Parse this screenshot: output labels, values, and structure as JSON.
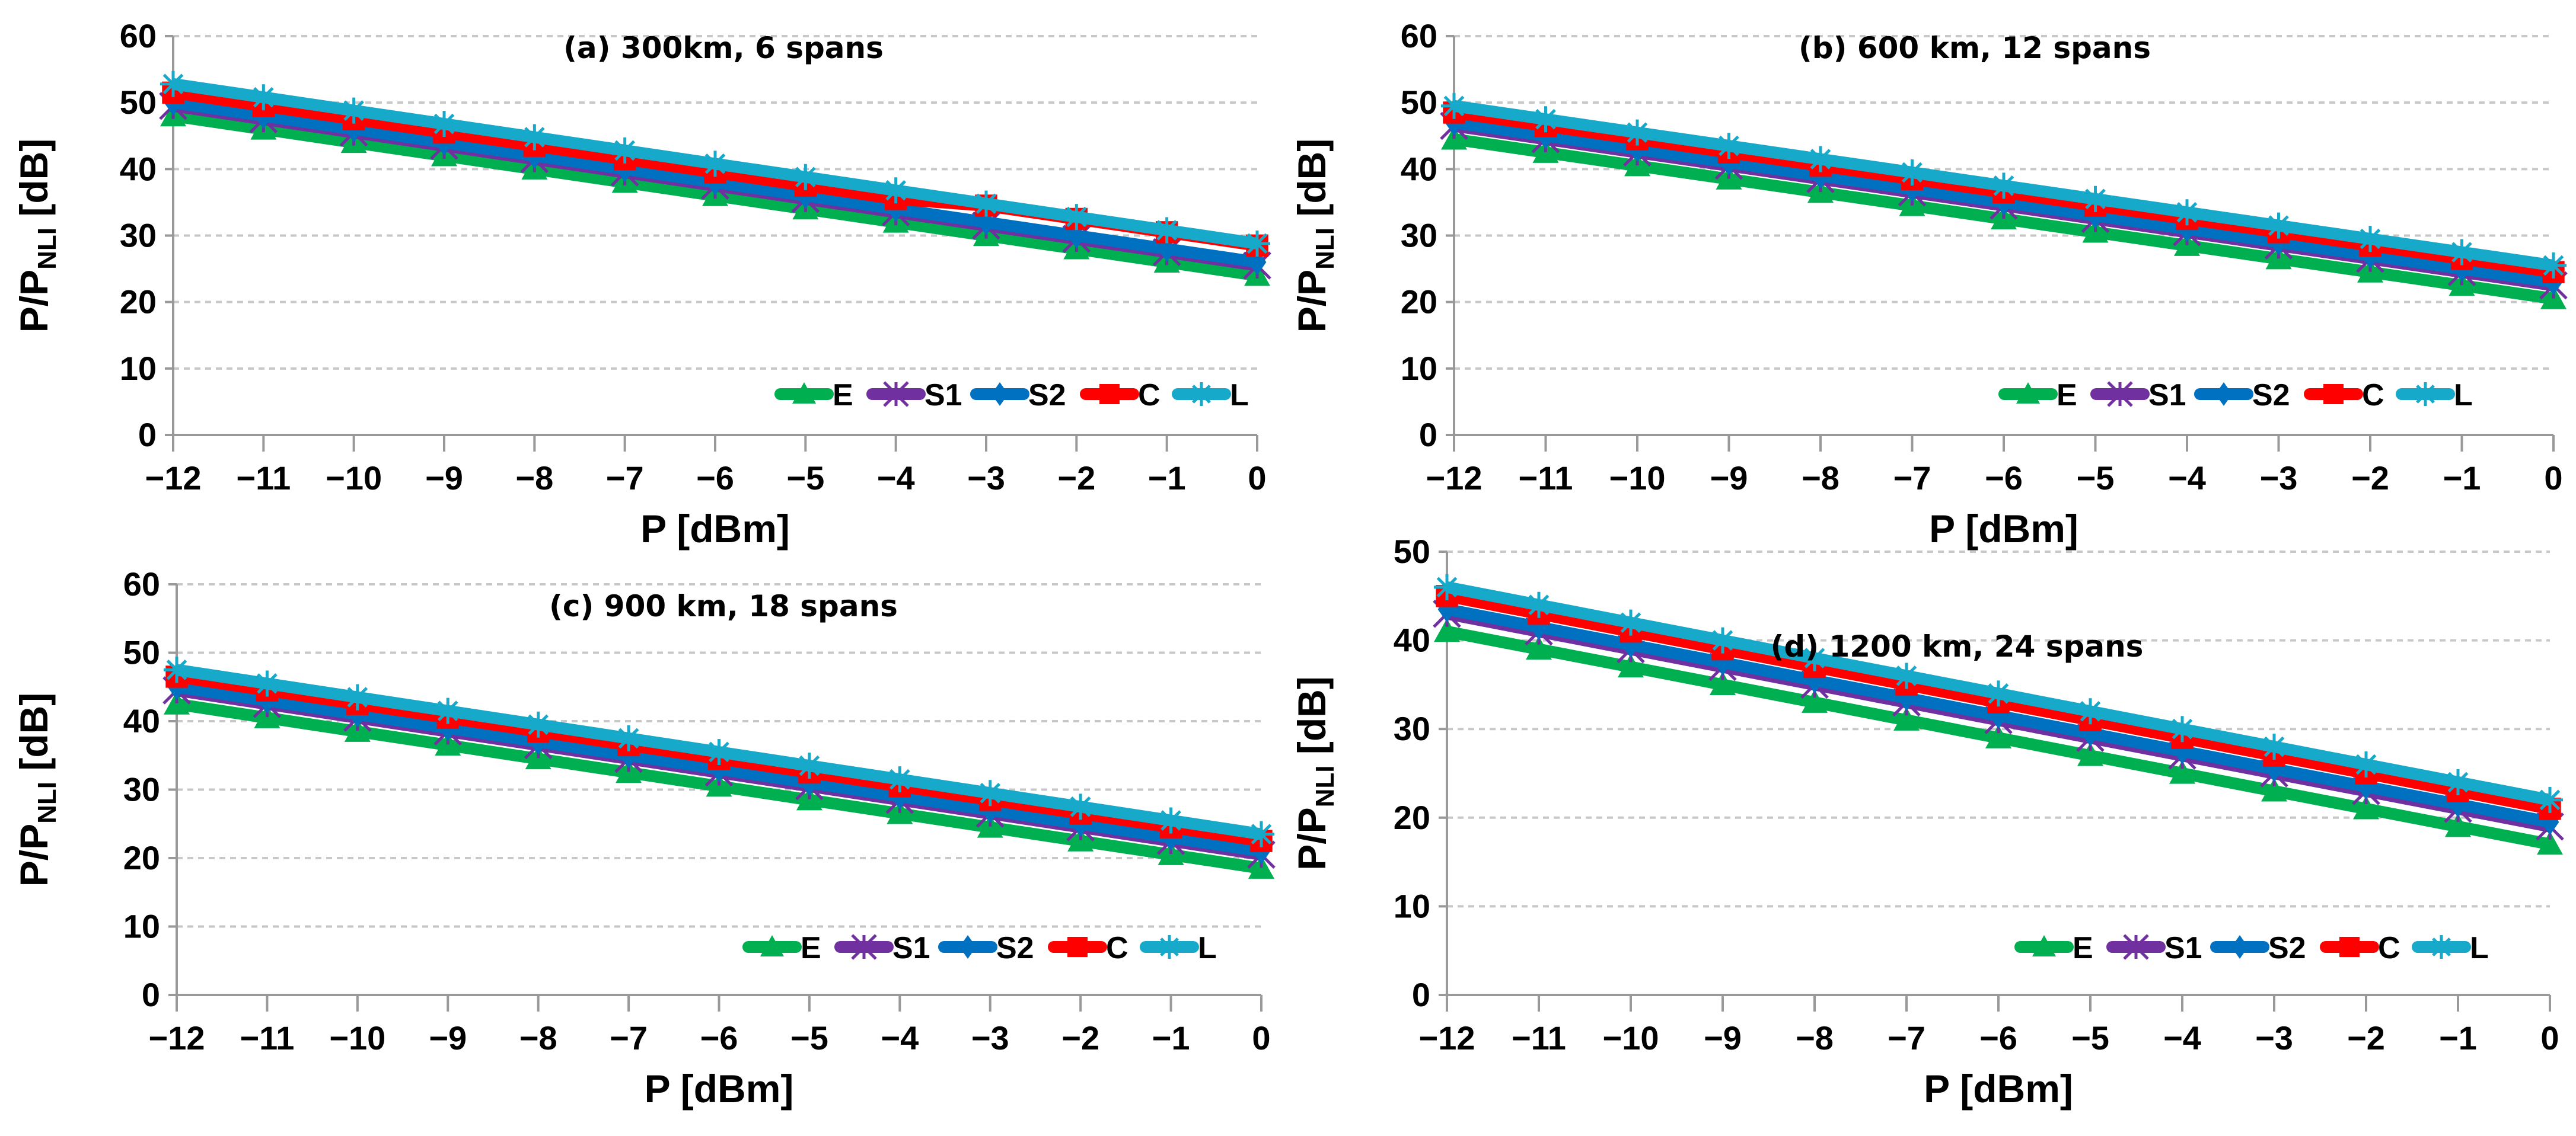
{
  "colors": {
    "E": "#00b050",
    "S1": "#7030a0",
    "S2": "#0070c0",
    "C": "#ff0000",
    "L": "#17a9c9",
    "grid": "#c8c8c8",
    "axis": "#999999"
  },
  "chart_data": [
    {
      "type": "line",
      "title": "(a) 300km, 6 spans",
      "xlabel": "P [dBm]",
      "ylabel_main": "P/P",
      "ylabel_sub": "NLI",
      "ylabel_unit": " [dB]",
      "x": [
        -12,
        -11,
        -10,
        -9,
        -8,
        -7,
        -6,
        -5,
        -4,
        -3,
        -2,
        -1,
        0
      ],
      "xticks": [
        "−12",
        "−11",
        "−10",
        "−9",
        "−8",
        "−7",
        "−6",
        "−5",
        "−4",
        "−3",
        "−2",
        "−1",
        "0"
      ],
      "ylim": [
        0,
        60
      ],
      "yticks": [
        "0",
        "10",
        "20",
        "30",
        "40",
        "50",
        "60"
      ],
      "grid": true,
      "legend": "bottom-right",
      "series": [
        {
          "name": "E",
          "marker": "triangle",
          "values": [
            48,
            46,
            44,
            42,
            40,
            38,
            36,
            34,
            32,
            30,
            28,
            26,
            24
          ]
        },
        {
          "name": "S1",
          "marker": "star-x",
          "values": [
            49.5,
            47.5,
            45.5,
            43.5,
            41.5,
            39.5,
            37.5,
            35.5,
            33.5,
            31.5,
            29.5,
            27.5,
            25.5
          ]
        },
        {
          "name": "S2",
          "marker": "diamond",
          "values": [
            50,
            48,
            46,
            44,
            42,
            40,
            38,
            36,
            34,
            32,
            30,
            28,
            26
          ]
        },
        {
          "name": "C",
          "marker": "square",
          "values": [
            51.5,
            49.5,
            47.5,
            45.5,
            43.5,
            41.5,
            39.5,
            37.5,
            35.5,
            34.5,
            32.5,
            30.5,
            28.5
          ]
        },
        {
          "name": "L",
          "marker": "asterisk",
          "values": [
            52.8,
            50.8,
            48.8,
            46.8,
            44.8,
            42.8,
            40.8,
            38.8,
            36.8,
            34.8,
            32.8,
            30.8,
            28.8
          ]
        }
      ]
    },
    {
      "type": "line",
      "title": "(b) 600 km, 12 spans",
      "xlabel": "P [dBm]",
      "ylabel_main": "P/P",
      "ylabel_sub": "NLI",
      "ylabel_unit": " [dB]",
      "x": [
        -12,
        -11,
        -10,
        -9,
        -8,
        -7,
        -6,
        -5,
        -4,
        -3,
        -2,
        -1,
        0
      ],
      "xticks": [
        "−12",
        "−11",
        "−10",
        "−9",
        "−8",
        "−7",
        "−6",
        "−5",
        "−4",
        "−3",
        "−2",
        "−1",
        "0"
      ],
      "ylim": [
        0,
        60
      ],
      "yticks": [
        "0",
        "10",
        "20",
        "30",
        "40",
        "50",
        "60"
      ],
      "grid": true,
      "legend": "bottom-right",
      "series": [
        {
          "name": "E",
          "marker": "triangle",
          "values": [
            44.5,
            42.5,
            40.5,
            38.5,
            36.5,
            34.5,
            32.5,
            30.5,
            28.5,
            26.5,
            24.5,
            22.5,
            20.5
          ]
        },
        {
          "name": "S1",
          "marker": "star-x",
          "values": [
            46.5,
            44.5,
            42.5,
            40.5,
            38.5,
            36.5,
            34.5,
            32.5,
            30.5,
            28.5,
            26.5,
            24.5,
            22.5
          ]
        },
        {
          "name": "S2",
          "marker": "diamond",
          "values": [
            47,
            45,
            43,
            41,
            39,
            37,
            35,
            33,
            31,
            29,
            27,
            25,
            23
          ]
        },
        {
          "name": "C",
          "marker": "square",
          "values": [
            48.5,
            46.5,
            44.5,
            42.5,
            40.5,
            38.5,
            36.5,
            34.5,
            32.5,
            30.5,
            28.5,
            26.5,
            24.5
          ]
        },
        {
          "name": "L",
          "marker": "asterisk",
          "values": [
            49.5,
            47.5,
            45.5,
            43.5,
            41.5,
            39.5,
            37.5,
            35.5,
            33.5,
            31.5,
            29.5,
            27.5,
            25.5
          ]
        }
      ]
    },
    {
      "type": "line",
      "title": "(c) 900 km, 18 spans",
      "xlabel": "P [dBm]",
      "ylabel_main": "P/P",
      "ylabel_sub": "NLI",
      "ylabel_unit": " [dB]",
      "x": [
        -12,
        -11,
        -10,
        -9,
        -8,
        -7,
        -6,
        -5,
        -4,
        -3,
        -2,
        -1,
        0
      ],
      "xticks": [
        "−12",
        "−11",
        "−10",
        "−9",
        "−8",
        "−7",
        "−6",
        "−5",
        "−4",
        "−3",
        "−2",
        "−1",
        "0"
      ],
      "ylim": [
        0,
        60
      ],
      "yticks": [
        "0",
        "10",
        "20",
        "30",
        "40",
        "50",
        "60"
      ],
      "grid": true,
      "legend": "bottom-right",
      "series": [
        {
          "name": "E",
          "marker": "triangle",
          "values": [
            42.5,
            40.5,
            38.5,
            36.5,
            34.5,
            32.5,
            30.5,
            28.5,
            26.5,
            24.5,
            22.5,
            20.5,
            18.5
          ]
        },
        {
          "name": "S1",
          "marker": "star-x",
          "values": [
            44.5,
            42.5,
            40.5,
            38.5,
            36.5,
            34.5,
            32.5,
            30.5,
            28.5,
            26.5,
            24.5,
            22.5,
            20.5
          ]
        },
        {
          "name": "S2",
          "marker": "diamond",
          "values": [
            45,
            43,
            41,
            39,
            37,
            35,
            33,
            31,
            29,
            27,
            25,
            23,
            21
          ]
        },
        {
          "name": "C",
          "marker": "square",
          "values": [
            46.5,
            44.5,
            42.5,
            40.5,
            38.5,
            36.5,
            34.5,
            32.5,
            30.5,
            28.5,
            26.5,
            24.5,
            22.5
          ]
        },
        {
          "name": "L",
          "marker": "asterisk",
          "values": [
            47.5,
            45.5,
            43.5,
            41.5,
            39.5,
            37.5,
            35.5,
            33.5,
            31.5,
            29.5,
            27.5,
            25.5,
            23.5
          ]
        }
      ]
    },
    {
      "type": "line",
      "title": "(d) 1200 km, 24 spans",
      "xlabel": "P [dBm]",
      "ylabel_main": "P/P",
      "ylabel_sub": "NLI",
      "ylabel_unit": " [dB]",
      "x": [
        -12,
        -11,
        -10,
        -9,
        -8,
        -7,
        -6,
        -5,
        -4,
        -3,
        -2,
        -1,
        0
      ],
      "xticks": [
        "−12",
        "−11",
        "−10",
        "−9",
        "−8",
        "−7",
        "−6",
        "−5",
        "−4",
        "−3",
        "−2",
        "−1",
        "0"
      ],
      "ylim": [
        0,
        50
      ],
      "yticks": [
        "0",
        "10",
        "20",
        "30",
        "40",
        "50"
      ],
      "grid": true,
      "legend": "bottom-right",
      "series": [
        {
          "name": "E",
          "marker": "triangle",
          "values": [
            41,
            39,
            37,
            35,
            33,
            31,
            29,
            27,
            25,
            23,
            21,
            19,
            17
          ]
        },
        {
          "name": "S1",
          "marker": "star-x",
          "values": [
            43,
            41,
            39,
            37,
            35,
            33,
            31,
            29,
            27,
            25,
            23,
            21,
            19
          ]
        },
        {
          "name": "S2",
          "marker": "diamond",
          "values": [
            43.5,
            41.5,
            39.5,
            37.5,
            35.5,
            33.5,
            31.5,
            29.5,
            27.5,
            25.5,
            23.5,
            21.5,
            19.5
          ]
        },
        {
          "name": "C",
          "marker": "square",
          "values": [
            45,
            43,
            41,
            39,
            37,
            35,
            33,
            31,
            29,
            27,
            25,
            23,
            21
          ]
        },
        {
          "name": "L",
          "marker": "asterisk",
          "values": [
            46,
            44,
            42,
            40,
            38,
            36,
            34,
            32,
            30,
            28,
            26,
            24,
            22
          ]
        }
      ]
    }
  ]
}
